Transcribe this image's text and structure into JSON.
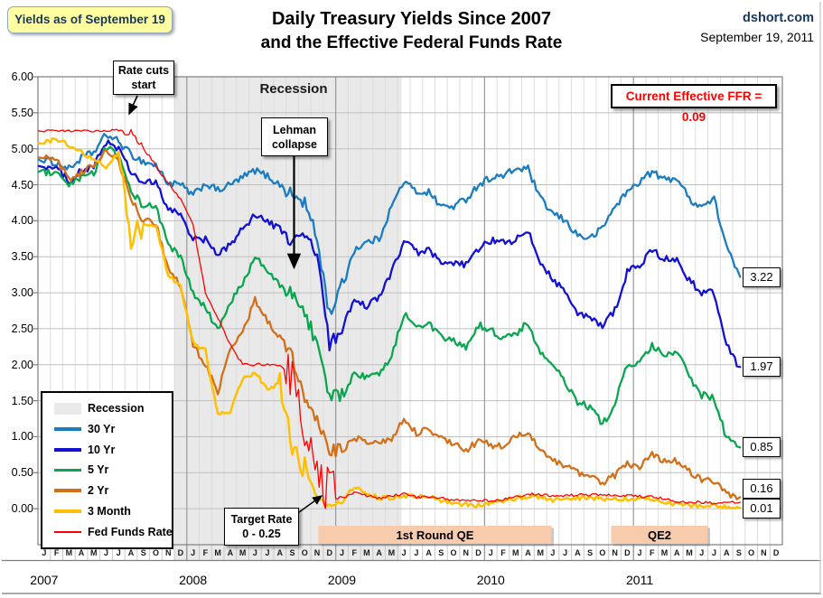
{
  "header": {
    "badge": "Yields as of September 19",
    "title_line1": "Daily Treasury Yields Since 2007",
    "title_line2": "and the Effective Federal Funds Rate",
    "source": "dshort.com",
    "date": "September 19, 2011"
  },
  "annotations": {
    "rate_cuts": "Rate cuts start",
    "recession_label": "Recession",
    "lehman": "Lehman collapse",
    "target_rate_line1": "Target Rate",
    "target_rate_line2": "0 - 0.25",
    "ffr_box": "Current Effective FFR = 0.09"
  },
  "legend": {
    "items": [
      {
        "label": "Recession",
        "color": "#E9E9E9",
        "swatch": "band"
      },
      {
        "label": "30 Yr",
        "color": "#1B7CC0",
        "swatch": "line"
      },
      {
        "label": "10 Yr",
        "color": "#1212D0",
        "swatch": "line"
      },
      {
        "label": "5 Yr",
        "color": "#0AA64F",
        "swatch": "line"
      },
      {
        "label": "2 Yr",
        "color": "#D2701A",
        "swatch": "line"
      },
      {
        "label": "3 Month",
        "color": "#FFC003",
        "swatch": "line"
      },
      {
        "label": "Fed Funds Rate",
        "color": "#FE0000",
        "swatch": "thin-line"
      }
    ]
  },
  "end_labels": [
    {
      "text": "3.22",
      "value": 3.22,
      "dy": 0
    },
    {
      "text": "1.97",
      "value": 1.97,
      "dy": 0
    },
    {
      "text": "0.85",
      "value": 0.85,
      "dy": 0
    },
    {
      "text": "0.16",
      "value": 0.16,
      "dy": -9
    },
    {
      "text": "0.01",
      "value": 0.01,
      "dy": 1
    }
  ],
  "chart_data": {
    "type": "line",
    "title": "Daily Treasury Yields Since 2007 and the Effective Federal Funds Rate",
    "xlabel": "",
    "ylabel": "",
    "ylim": [
      -0.5,
      6.0
    ],
    "yticks": [
      6.0,
      5.5,
      5.0,
      4.5,
      4.0,
      3.5,
      3.0,
      2.5,
      2.0,
      1.5,
      1.0,
      0.5,
      0.0
    ],
    "grid": true,
    "legend_position": "lower-left",
    "years": [
      "2007",
      "2008",
      "2009",
      "2010",
      "2011"
    ],
    "month_letters": [
      "J",
      "F",
      "M",
      "A",
      "M",
      "J",
      "J",
      "A",
      "S",
      "O",
      "N",
      "D"
    ],
    "x_start": "2007-01",
    "x_end": "2011-09-19",
    "end_month_index": 56.6,
    "recession_band": {
      "label": "Recession",
      "start_month_index": 11,
      "end_month_index": 29.3
    },
    "qe_bands": [
      {
        "label": "1st Round QE",
        "start_month_index": 22.6,
        "end_month_index": 41.4
      },
      {
        "label": "QE2",
        "start_month_index": 46.2,
        "end_month_index": 54.0
      }
    ],
    "series": [
      {
        "name": "30 Yr",
        "color": "#1B7CC0",
        "width": 2.3,
        "jitter": 0.05,
        "vol_windows": [
          {
            "from": 20,
            "to": 25,
            "mult": 2
          }
        ],
        "values": [
          4.85,
          4.8,
          4.72,
          4.87,
          4.95,
          5.2,
          5.1,
          4.92,
          4.82,
          4.77,
          4.52,
          4.5,
          4.35,
          4.52,
          4.42,
          4.5,
          4.6,
          4.7,
          4.62,
          4.5,
          4.35,
          4.25,
          3.75,
          2.7,
          3.1,
          3.6,
          3.7,
          3.75,
          4.2,
          4.55,
          4.4,
          4.4,
          4.2,
          4.2,
          4.3,
          4.5,
          4.6,
          4.62,
          4.72,
          4.72,
          4.3,
          4.1,
          4.0,
          3.8,
          3.75,
          3.9,
          4.2,
          4.4,
          4.55,
          4.68,
          4.57,
          4.6,
          4.3,
          4.2,
          4.3,
          3.65,
          3.22
        ]
      },
      {
        "name": "10 Yr",
        "color": "#1212D0",
        "width": 2.3,
        "jitter": 0.05,
        "vol_windows": [
          {
            "from": 20,
            "to": 25,
            "mult": 2
          }
        ],
        "values": [
          4.76,
          4.72,
          4.56,
          4.69,
          4.75,
          5.1,
          5.0,
          4.67,
          4.52,
          4.53,
          4.15,
          4.1,
          3.74,
          3.74,
          3.51,
          3.68,
          3.88,
          4.1,
          3.98,
          3.89,
          3.69,
          3.81,
          3.53,
          2.25,
          2.52,
          2.87,
          2.82,
          2.93,
          3.29,
          3.72,
          3.56,
          3.59,
          3.4,
          3.39,
          3.4,
          3.59,
          3.73,
          3.69,
          3.73,
          3.85,
          3.42,
          3.2,
          3.01,
          2.7,
          2.65,
          2.54,
          2.76,
          3.29,
          3.39,
          3.58,
          3.47,
          3.46,
          3.17,
          3.0,
          3.0,
          2.3,
          1.97
        ]
      },
      {
        "name": "5 Yr",
        "color": "#0AA64F",
        "width": 2.3,
        "jitter": 0.05,
        "vol_windows": [
          {
            "from": 20,
            "to": 25,
            "mult": 2
          }
        ],
        "values": [
          4.68,
          4.64,
          4.48,
          4.59,
          4.67,
          5.03,
          4.88,
          4.43,
          4.2,
          4.2,
          3.67,
          3.49,
          2.98,
          2.78,
          2.48,
          2.84,
          3.15,
          3.49,
          3.3,
          3.1,
          2.98,
          2.73,
          2.29,
          1.52,
          1.6,
          1.87,
          1.82,
          1.86,
          2.13,
          2.71,
          2.56,
          2.57,
          2.37,
          2.33,
          2.23,
          2.55,
          2.48,
          2.36,
          2.43,
          2.58,
          2.16,
          1.98,
          1.76,
          1.47,
          1.41,
          1.17,
          1.45,
          2.01,
          2.01,
          2.26,
          2.12,
          2.17,
          1.84,
          1.58,
          1.54,
          0.98,
          0.85
        ]
      },
      {
        "name": "2 Yr",
        "color": "#D2701A",
        "width": 2.3,
        "jitter": 0.045,
        "vol_windows": [
          {
            "from": 20,
            "to": 25,
            "mult": 2
          }
        ],
        "values": [
          4.88,
          4.85,
          4.57,
          4.67,
          4.77,
          4.98,
          4.82,
          4.3,
          4.0,
          3.97,
          3.34,
          3.1,
          2.28,
          2.0,
          1.62,
          2.2,
          2.45,
          2.9,
          2.6,
          2.4,
          2.1,
          1.56,
          1.21,
          0.82,
          0.81,
          0.98,
          0.93,
          0.93,
          0.97,
          1.27,
          1.05,
          1.12,
          0.97,
          0.91,
          0.8,
          0.95,
          0.88,
          0.86,
          1.0,
          1.06,
          0.79,
          0.68,
          0.58,
          0.51,
          0.44,
          0.36,
          0.46,
          0.62,
          0.59,
          0.77,
          0.66,
          0.66,
          0.52,
          0.41,
          0.39,
          0.2,
          0.16
        ]
      },
      {
        "name": "3 Month",
        "color": "#FFC003",
        "width": 2.5,
        "jitter": 0.03,
        "vol_windows": [
          {
            "from": 6.8,
            "to": 8.5,
            "mult": 8
          },
          {
            "from": 19.5,
            "to": 22,
            "mult": 6
          }
        ],
        "values": [
          5.08,
          5.14,
          5.05,
          4.95,
          4.85,
          4.75,
          4.95,
          3.7,
          3.95,
          3.92,
          3.25,
          3.1,
          2.3,
          2.2,
          1.3,
          1.35,
          1.8,
          1.88,
          1.68,
          1.72,
          0.9,
          0.55,
          0.15,
          0.05,
          0.1,
          0.3,
          0.22,
          0.15,
          0.15,
          0.18,
          0.18,
          0.17,
          0.12,
          0.07,
          0.06,
          0.05,
          0.08,
          0.11,
          0.15,
          0.16,
          0.16,
          0.12,
          0.15,
          0.15,
          0.15,
          0.13,
          0.14,
          0.14,
          0.15,
          0.13,
          0.1,
          0.06,
          0.05,
          0.03,
          0.05,
          0.02,
          0.01
        ]
      },
      {
        "name": "Fed Funds Rate",
        "color": "#FE0000",
        "width": 1.3,
        "jitter": 0.018,
        "vol_windows": [
          {
            "from": 7,
            "to": 9,
            "mult": 3
          },
          {
            "from": 20,
            "to": 24,
            "mult": 22
          }
        ],
        "values": [
          5.25,
          5.26,
          5.25,
          5.25,
          5.25,
          5.25,
          5.26,
          5.22,
          5.05,
          4.76,
          4.52,
          4.3,
          3.95,
          3.0,
          2.65,
          2.28,
          2.0,
          2.0,
          2.01,
          2.0,
          1.85,
          1.0,
          0.4,
          0.16,
          0.15,
          0.22,
          0.18,
          0.15,
          0.18,
          0.21,
          0.16,
          0.16,
          0.15,
          0.12,
          0.12,
          0.12,
          0.11,
          0.13,
          0.16,
          0.2,
          0.2,
          0.18,
          0.18,
          0.19,
          0.19,
          0.19,
          0.19,
          0.18,
          0.17,
          0.16,
          0.14,
          0.1,
          0.09,
          0.09,
          0.07,
          0.1,
          0.09
        ]
      }
    ],
    "qe_band_color": "#F8CBAD",
    "recession_color": "#E9E9E9",
    "current_effective_ffr": 0.09
  }
}
